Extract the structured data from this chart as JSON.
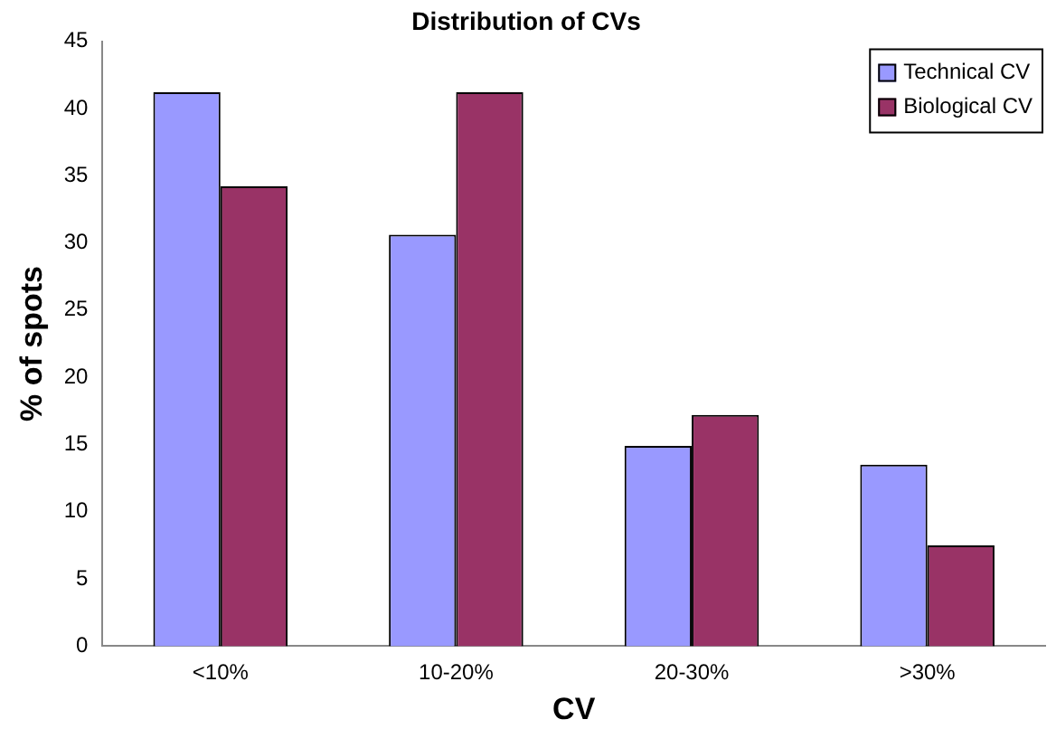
{
  "chart_data": {
    "type": "bar",
    "title": "Distribution of CVs",
    "xlabel": "CV",
    "ylabel": "% of spots",
    "categories": [
      "<10%",
      "10-20%",
      "20-30%",
      ">30%"
    ],
    "series": [
      {
        "name": "Technical CV",
        "color": "#9999ff",
        "values": [
          41.2,
          30.6,
          14.9,
          13.5
        ]
      },
      {
        "name": "Biological CV",
        "color": "#993366",
        "values": [
          34.2,
          41.2,
          17.2,
          7.5
        ]
      }
    ],
    "ylim": [
      0,
      45
    ],
    "yticks": [
      0,
      5,
      10,
      15,
      20,
      25,
      30,
      35,
      40,
      45
    ],
    "grid": false,
    "legend": "top right"
  }
}
